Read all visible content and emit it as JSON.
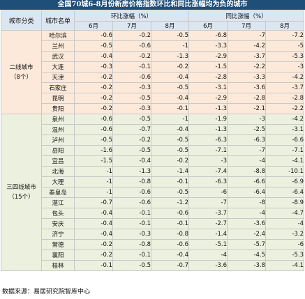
{
  "title": "全国70城6-8月份新房价格指数环比和同比涨幅均为负的城市",
  "headers": {
    "category": "城市分类",
    "city": "城市名单",
    "mom_group": "环比涨幅（%）",
    "yoy_group": "同比涨幅（%）",
    "months": [
      "6月",
      "7月",
      "8月"
    ]
  },
  "groups": [
    {
      "label_line1": "二线城市",
      "label_line2": "（8个）",
      "rows": [
        {
          "city": "哈尔滨",
          "mom": [
            "-0.6",
            "-0.2",
            "-0.5"
          ],
          "yoy": [
            "-6.8",
            "-7",
            "-7.2"
          ]
        },
        {
          "city": "兰州",
          "mom": [
            "-0.5",
            "-0.6",
            "-1"
          ],
          "yoy": [
            "-3.3",
            "-4.2",
            "-5"
          ]
        },
        {
          "city": "武汉",
          "mom": [
            "-0.4",
            "-0.2",
            "-1.3"
          ],
          "yoy": [
            "-2.9",
            "-3.7",
            "-5.3"
          ]
        },
        {
          "city": "大连",
          "mom": [
            "-0.3",
            "-0.1",
            "-0.2"
          ],
          "yoy": [
            "-1.5",
            "-2.2",
            "-3"
          ]
        },
        {
          "city": "天津",
          "mom": [
            "-0.2",
            "-0.6",
            "-0.4"
          ],
          "yoy": [
            "-2.8",
            "-3.3",
            "-4.2"
          ]
        },
        {
          "city": "石家庄",
          "mom": [
            "-0.2",
            "-0.3",
            "-0.5"
          ],
          "yoy": [
            "-3.1",
            "-3.6",
            "-3.7"
          ]
        },
        {
          "city": "昆明",
          "mom": [
            "-0.2",
            "-0.5",
            "-0.4"
          ],
          "yoy": [
            "-2.9",
            "-2.8",
            "-2.8"
          ]
        },
        {
          "city": "贵阳",
          "mom": [
            "-0.2",
            "-0.3",
            "-0.1"
          ],
          "yoy": [
            "-1.3",
            "-2.1",
            "-2.2"
          ]
        }
      ]
    },
    {
      "label_line1": "三四线城市",
      "label_line2": "（15个）",
      "rows": [
        {
          "city": "泉州",
          "mom": [
            "-0.6",
            "-0.5",
            "-1"
          ],
          "yoy": [
            "-1.9",
            "-3",
            "-4.2"
          ]
        },
        {
          "city": "温州",
          "mom": [
            "-0.6",
            "-0.7",
            "-0.4"
          ],
          "yoy": [
            "-1.3",
            "-2.5",
            "-3.1"
          ]
        },
        {
          "city": "泸州",
          "mom": [
            "-0.5",
            "-0.2",
            "-0.5"
          ],
          "yoy": [
            "-6.3",
            "-6.3",
            "-6.6"
          ]
        },
        {
          "city": "岳阳",
          "mom": [
            "-1.6",
            "-0.5",
            "-0.5"
          ],
          "yoy": [
            "-7.1",
            "-7",
            "-7.1"
          ]
        },
        {
          "city": "宜昌",
          "mom": [
            "-1.5",
            "-0.4",
            "-0.2"
          ],
          "yoy": [
            "-3",
            "-4",
            "-4.1"
          ]
        },
        {
          "city": "北海",
          "mom": [
            "-1",
            "-1.3",
            "-1.4"
          ],
          "yoy": [
            "-7.4",
            "-8.8",
            "-10.1"
          ]
        },
        {
          "city": "大理",
          "mom": [
            "-1",
            "-0.8",
            "-0.1"
          ],
          "yoy": [
            "-6.3",
            "-6.6",
            "-6.9"
          ]
        },
        {
          "city": "秦皇岛",
          "mom": [
            "-1",
            "-0.6",
            "-0.5"
          ],
          "yoy": [
            "-6",
            "-6.4",
            "-6.4"
          ]
        },
        {
          "city": "湛江",
          "mom": [
            "-0.7",
            "-0.6",
            "-1.2"
          ],
          "yoy": [
            "-7",
            "-8",
            "-8.9"
          ]
        },
        {
          "city": "包头",
          "mom": [
            "-0.4",
            "-0.1",
            "-0.6"
          ],
          "yoy": [
            "-3.7",
            "-4",
            "-4.7"
          ]
        },
        {
          "city": "安庆",
          "mom": [
            "-0.4",
            "-0.1",
            "-0.1"
          ],
          "yoy": [
            "-2.7",
            "-3.6",
            "-4"
          ]
        },
        {
          "city": "济宁",
          "mom": [
            "-0.4",
            "-0.3",
            "-0.8"
          ],
          "yoy": [
            "-1.4",
            "-2.4",
            "-3.2"
          ]
        },
        {
          "city": "常德",
          "mom": [
            "-0.2",
            "-0.8",
            "-0.6"
          ],
          "yoy": [
            "-5.1",
            "-5.7",
            "-6"
          ]
        },
        {
          "city": "襄阳",
          "mom": [
            "-0.2",
            "-0.1",
            "-0.4"
          ],
          "yoy": [
            "-4",
            "-4.5",
            "-5.3"
          ]
        },
        {
          "city": "桂林",
          "mom": [
            "-0.1",
            "-0.5",
            "-0.7"
          ],
          "yoy": [
            "-3.6",
            "-3.8",
            "-4.1"
          ]
        }
      ]
    }
  ],
  "footer": "数据来源：易居研究院智库中心"
}
